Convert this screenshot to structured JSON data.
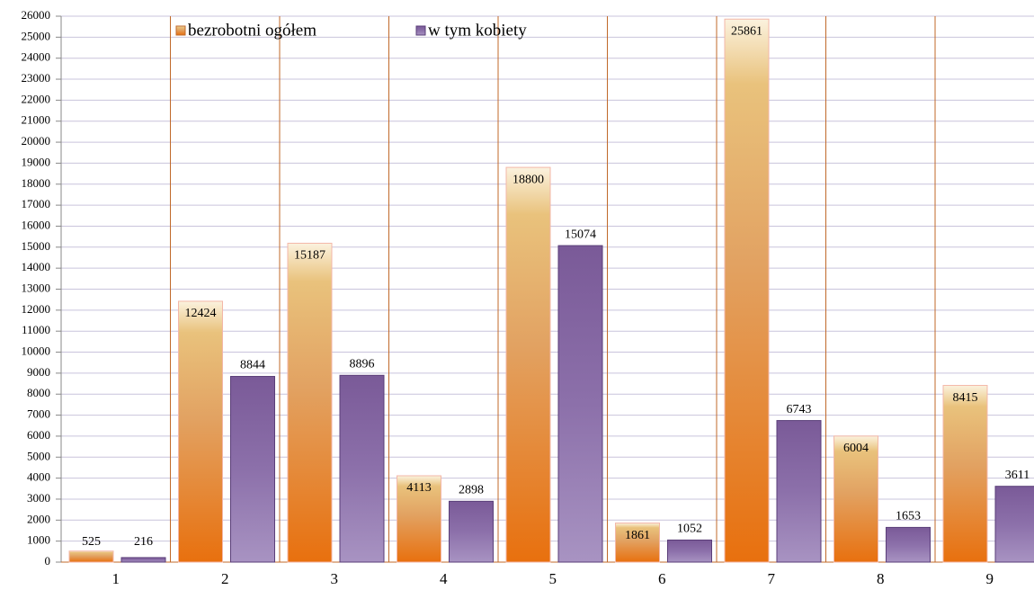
{
  "chart_data": {
    "type": "bar",
    "categories": [
      "1",
      "2",
      "3",
      "4",
      "5",
      "6",
      "7",
      "8",
      "9"
    ],
    "series": [
      {
        "name": "bezrobotni ogółem",
        "color": "#e8761a",
        "values": [
          525,
          12424,
          15187,
          4113,
          18800,
          1861,
          25861,
          6004,
          8415
        ]
      },
      {
        "name": "w tym kobiety",
        "color": "#8c6aa8",
        "values": [
          216,
          8844,
          8896,
          2898,
          15074,
          1052,
          6743,
          1653,
          3611
        ]
      }
    ],
    "ylim": [
      0,
      26000
    ],
    "yticks": [
      0,
      1000,
      2000,
      3000,
      4000,
      5000,
      6000,
      7000,
      8000,
      9000,
      10000,
      11000,
      12000,
      13000,
      14000,
      15000,
      16000,
      17000,
      18000,
      19000,
      20000,
      21000,
      22000,
      23000,
      24000,
      25000,
      26000
    ],
    "grid": true,
    "legend": "top"
  }
}
